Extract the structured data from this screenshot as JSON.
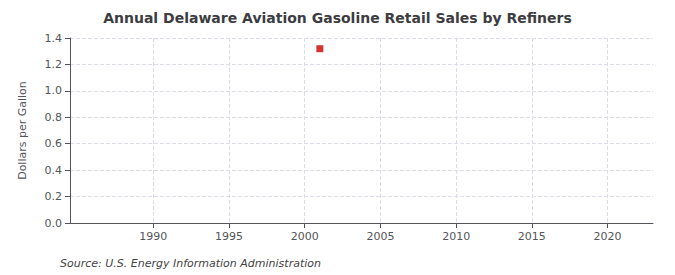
{
  "chart_data": {
    "type": "scatter",
    "title": "Annual Delaware Aviation Gasoline Retail Sales by Refiners",
    "ylabel": "Dollars per Gallon",
    "annotations": [
      "Source: U.S. Energy Information Administration"
    ],
    "x": [
      2001
    ],
    "values": [
      1.319
    ],
    "color": "#cc0000",
    "marker": "square",
    "xlim": [
      1984.5,
      2023
    ],
    "xticks": [
      1990,
      1995,
      2000,
      2005,
      2010,
      2015,
      2020
    ],
    "ylim": [
      0.0,
      1.4
    ],
    "yticks": [
      {
        "value": 0.0,
        "label": "0.0"
      },
      0.2,
      0.4,
      0.6,
      0.8,
      {
        "value": 1.0,
        "label": "1.0"
      },
      1.2,
      1.4
    ],
    "grid": true
  }
}
